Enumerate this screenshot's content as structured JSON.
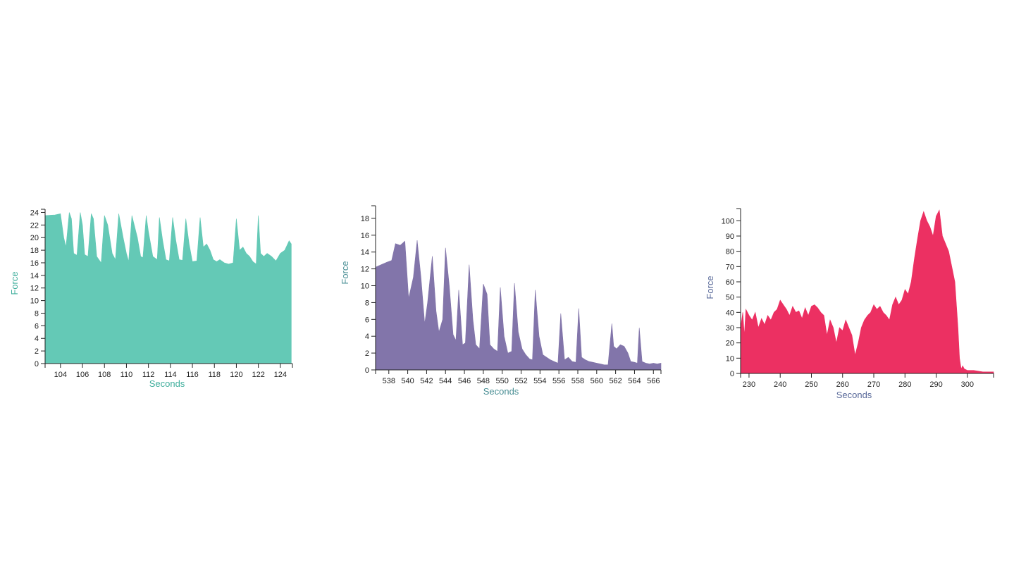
{
  "charts": [
    {
      "id": "chart1",
      "type": "area",
      "color": "#64c9b6",
      "label_color": "#3fae9c",
      "xlabel": "Seconds",
      "ylabel": "Force",
      "xlim": [
        102.6,
        125.1
      ],
      "ylim": [
        0,
        24.5
      ],
      "x_ticks": [
        104,
        106,
        108,
        110,
        112,
        114,
        116,
        118,
        120,
        122,
        124
      ],
      "y_ticks": [
        0,
        2,
        4,
        6,
        8,
        10,
        12,
        14,
        16,
        18,
        20,
        22,
        24
      ],
      "x": [
        102.6,
        103.5,
        104.0,
        104.3,
        104.5,
        104.8,
        105.0,
        105.2,
        105.5,
        105.8,
        106.0,
        106.2,
        106.5,
        106.8,
        107.0,
        107.3,
        107.7,
        108.0,
        108.3,
        108.7,
        109.0,
        109.3,
        109.7,
        110.0,
        110.2,
        110.5,
        111.0,
        111.3,
        111.5,
        111.8,
        112.0,
        112.4,
        112.8,
        113.0,
        113.3,
        113.6,
        113.9,
        114.2,
        114.5,
        114.8,
        115.1,
        115.4,
        115.7,
        116.0,
        116.4,
        116.7,
        117.0,
        117.3,
        117.6,
        117.9,
        118.2,
        118.5,
        118.9,
        119.3,
        119.7,
        120.0,
        120.3,
        120.6,
        120.9,
        121.2,
        121.5,
        121.8,
        122.0,
        122.2,
        122.5,
        122.8,
        123.2,
        123.6,
        124.0,
        124.4,
        124.8,
        125.0
      ],
      "values": [
        23.5,
        23.6,
        23.8,
        20.0,
        18.5,
        24.0,
        23.0,
        17.5,
        17.2,
        24.0,
        22.0,
        17.3,
        17.0,
        23.8,
        23.0,
        17.0,
        16.0,
        23.5,
        22.0,
        17.5,
        16.5,
        23.8,
        20.0,
        17.5,
        16.2,
        23.5,
        20.0,
        17.0,
        16.8,
        23.5,
        21.0,
        17.0,
        16.5,
        23.2,
        19.5,
        16.5,
        16.3,
        23.2,
        19.5,
        16.5,
        16.4,
        23.0,
        19.0,
        16.2,
        16.3,
        23.2,
        18.5,
        19.0,
        18.0,
        16.5,
        16.2,
        16.5,
        16.0,
        15.8,
        16.0,
        23.0,
        18.0,
        18.5,
        17.5,
        17.0,
        16.2,
        15.8,
        23.5,
        17.5,
        17.0,
        17.5,
        17.0,
        16.3,
        17.5,
        18.0,
        19.5,
        19.0
      ]
    },
    {
      "id": "chart2",
      "type": "area",
      "color": "#8275aa",
      "label_color": "#4a8f95",
      "xlabel": "Seconds",
      "ylabel": "Force",
      "xlim": [
        536.6,
        566.8
      ],
      "ylim": [
        0,
        19.5
      ],
      "x_ticks": [
        538,
        540,
        542,
        544,
        546,
        548,
        550,
        552,
        554,
        556,
        558,
        560,
        562,
        564,
        566
      ],
      "y_ticks": [
        0,
        2,
        4,
        6,
        8,
        10,
        12,
        14,
        16,
        18
      ],
      "x": [
        536.6,
        537.2,
        537.8,
        538.3,
        538.7,
        539.2,
        539.7,
        540.1,
        540.6,
        541.0,
        541.4,
        541.8,
        542.1,
        542.6,
        543.0,
        543.3,
        543.7,
        544.0,
        544.4,
        544.8,
        545.1,
        545.4,
        545.8,
        546.1,
        546.5,
        546.9,
        547.2,
        547.6,
        548.0,
        548.4,
        548.7,
        549.1,
        549.5,
        549.8,
        550.2,
        550.6,
        551.0,
        551.3,
        551.7,
        552.1,
        552.5,
        552.9,
        553.2,
        553.5,
        553.9,
        554.3,
        554.7,
        555.1,
        555.5,
        555.9,
        556.2,
        556.6,
        557.0,
        557.4,
        557.8,
        558.1,
        558.4,
        558.8,
        559.2,
        559.6,
        560.0,
        560.4,
        560.8,
        561.2,
        561.6,
        561.8,
        562.1,
        562.5,
        562.9,
        563.3,
        563.6,
        564.0,
        564.3,
        564.5,
        564.8,
        565.2,
        565.6,
        566.0,
        566.4,
        566.8
      ],
      "values": [
        12.2,
        12.5,
        12.8,
        13.0,
        15.0,
        14.8,
        15.3,
        8.5,
        11.0,
        15.4,
        11.0,
        5.5,
        8.0,
        13.5,
        7.0,
        4.5,
        6.0,
        14.5,
        10.0,
        4.2,
        3.5,
        9.5,
        3.0,
        3.2,
        12.5,
        6.0,
        3.0,
        2.5,
        10.2,
        9.0,
        3.0,
        2.5,
        2.2,
        9.8,
        4.0,
        2.0,
        2.2,
        10.3,
        4.5,
        2.5,
        1.8,
        1.3,
        1.2,
        9.5,
        4.0,
        1.8,
        1.5,
        1.2,
        1.0,
        0.8,
        6.7,
        1.2,
        1.5,
        1.0,
        0.9,
        7.3,
        1.5,
        1.2,
        1.0,
        0.9,
        0.8,
        0.7,
        0.6,
        0.6,
        5.5,
        2.8,
        2.5,
        3.0,
        2.8,
        2.0,
        1.0,
        0.9,
        0.8,
        5.0,
        1.0,
        0.8,
        0.7,
        0.8,
        0.7,
        0.8
      ]
    },
    {
      "id": "chart3",
      "type": "area",
      "color": "#ec3062",
      "label_color": "#5a6a9a",
      "xlabel": "Seconds",
      "ylabel": "Force",
      "xlim": [
        227.3,
        308.4
      ],
      "ylim": [
        0,
        108
      ],
      "x_ticks": [
        230,
        240,
        250,
        260,
        270,
        280,
        290,
        300
      ],
      "y_ticks": [
        0,
        10,
        20,
        30,
        40,
        50,
        60,
        70,
        80,
        90,
        100
      ],
      "x": [
        227.3,
        228.0,
        228.5,
        229.0,
        230.0,
        231.0,
        232.0,
        233.0,
        234.0,
        235.0,
        236.0,
        237.0,
        238.0,
        239.0,
        240.0,
        241.0,
        242.0,
        243.0,
        244.0,
        245.0,
        246.0,
        247.0,
        248.0,
        249.0,
        250.0,
        251.0,
        252.0,
        253.0,
        254.0,
        255.0,
        256.0,
        257.0,
        258.0,
        259.0,
        260.0,
        261.0,
        262.0,
        263.0,
        264.0,
        265.0,
        266.0,
        267.0,
        268.0,
        269.0,
        270.0,
        271.0,
        272.0,
        273.0,
        274.0,
        275.0,
        276.0,
        277.0,
        278.0,
        279.0,
        280.0,
        281.0,
        282.0,
        283.0,
        284.0,
        285.0,
        286.0,
        287.0,
        288.0,
        289.0,
        290.0,
        291.0,
        292.0,
        293.0,
        294.0,
        295.0,
        296.0,
        296.5,
        297.0,
        297.5,
        298.0,
        298.5,
        299.0,
        300.0,
        302.0,
        305.0,
        308.4
      ],
      "values": [
        30,
        40,
        25,
        42,
        38,
        35,
        40,
        30,
        36,
        32,
        38,
        35,
        40,
        42,
        48,
        45,
        42,
        38,
        44,
        40,
        41,
        36,
        43,
        38,
        44,
        45,
        43,
        40,
        38,
        25,
        35,
        30,
        20,
        30,
        28,
        35,
        30,
        25,
        12,
        20,
        30,
        35,
        38,
        40,
        45,
        42,
        44,
        40,
        38,
        35,
        45,
        50,
        45,
        48,
        55,
        52,
        60,
        75,
        88,
        100,
        106,
        100,
        96,
        90,
        103,
        107,
        90,
        85,
        80,
        70,
        60,
        45,
        30,
        10,
        3,
        5,
        3,
        2,
        2,
        1,
        1
      ]
    }
  ]
}
